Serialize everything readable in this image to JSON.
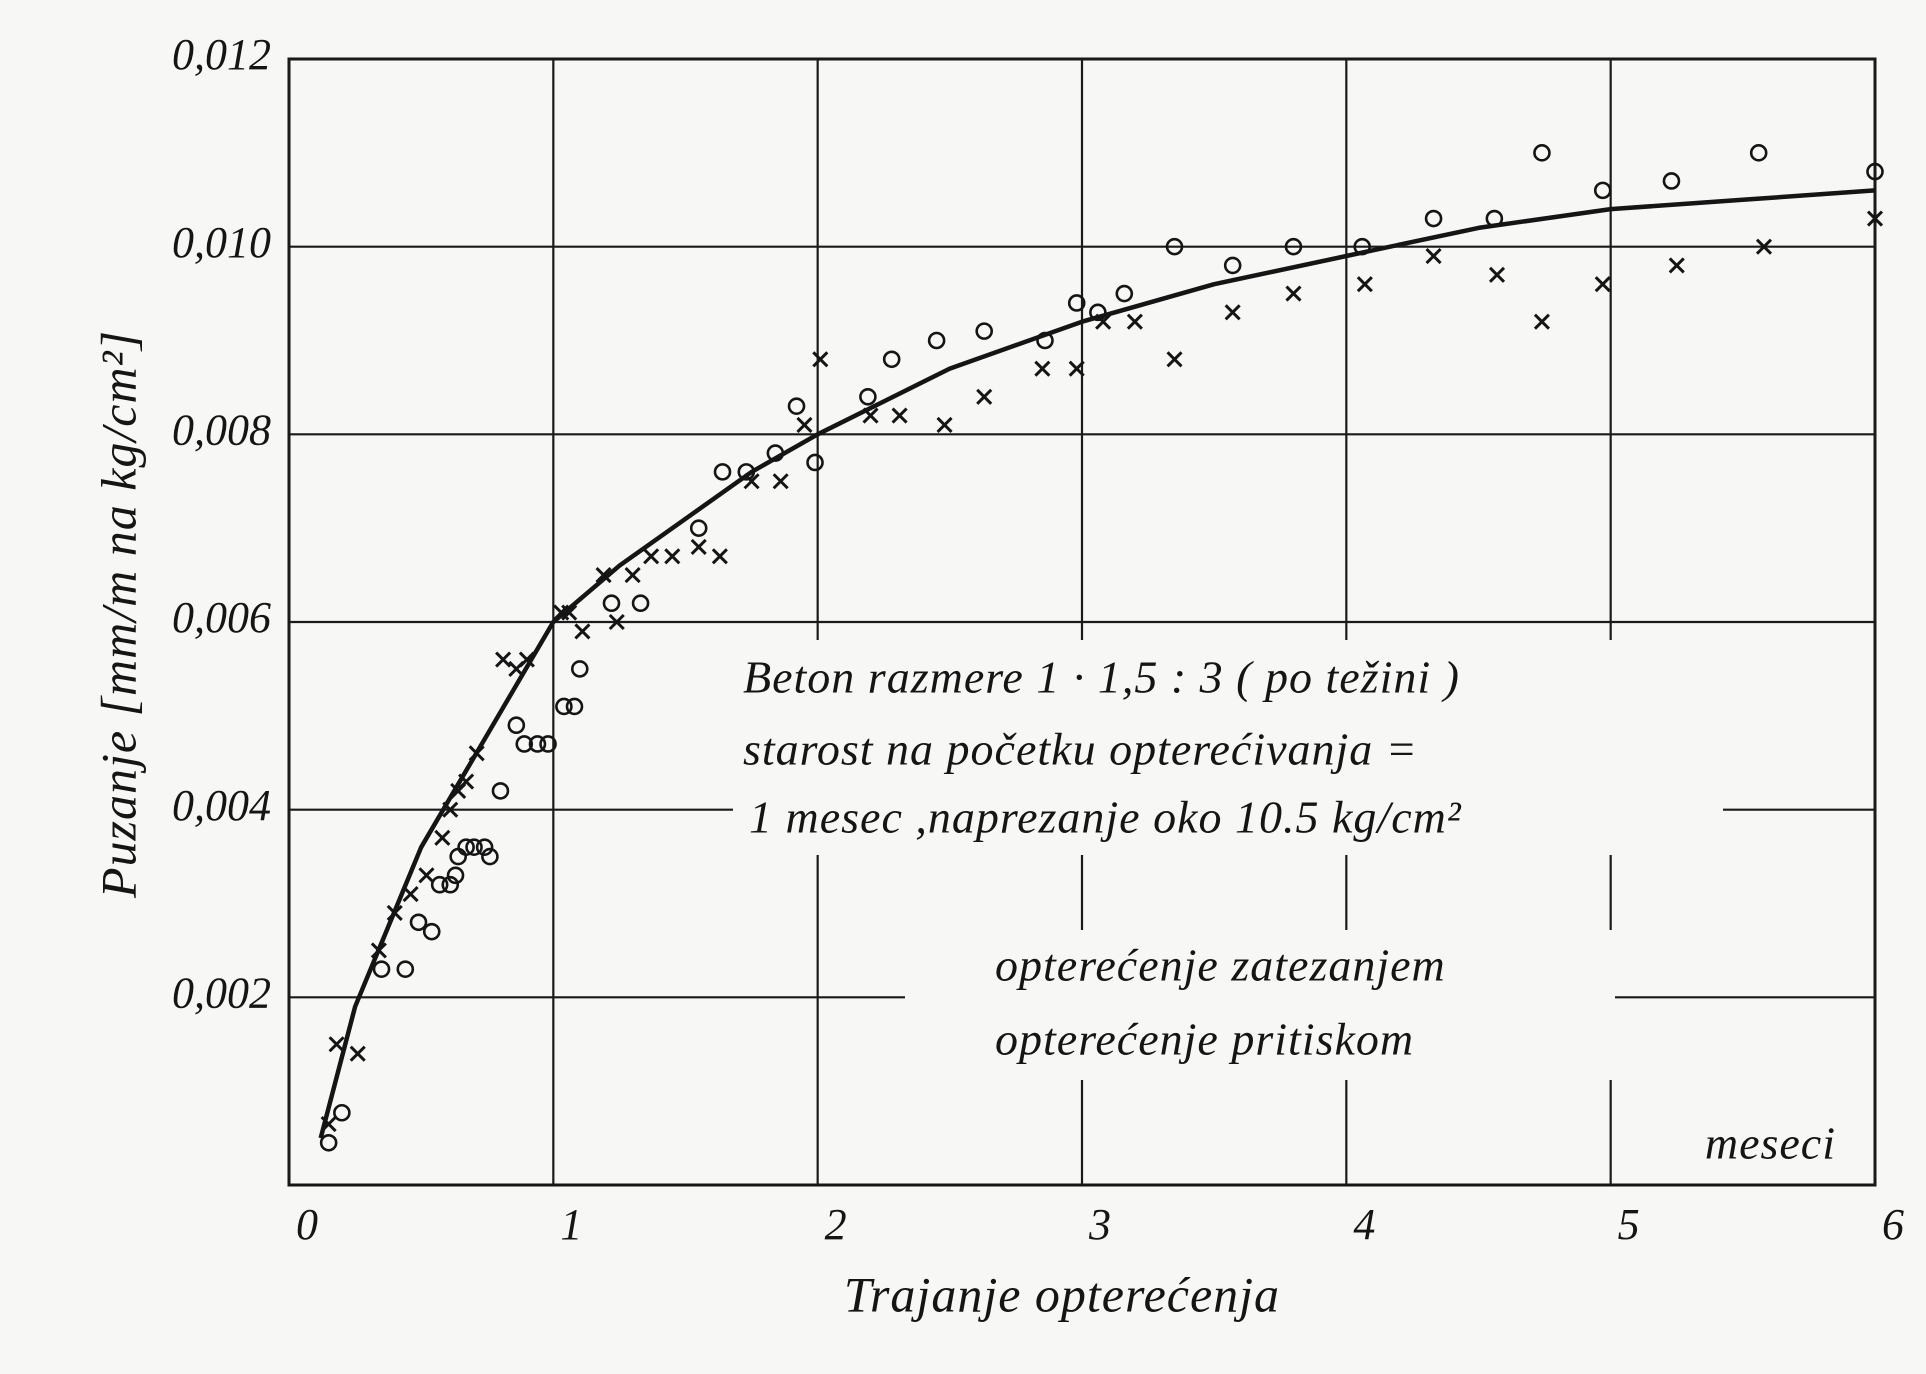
{
  "chart_data": {
    "type": "scatter",
    "x_label": "Trajanje opterećenja",
    "y_label": "Puzanje [mm/m na kg/cm²]",
    "unit_label": "meseci",
    "annotation": [
      "Beton razmere  1 · 1,5 : 3 ( po težini )",
      "starost na početku opterećivanja =",
      "1 mesec ,naprezanje oko 10.5 kg/cm²"
    ],
    "xlim": [
      0,
      6
    ],
    "ylim": [
      0,
      0.012
    ],
    "xticks": [
      0,
      1,
      2,
      3,
      4,
      5,
      6
    ],
    "yticks": [
      {
        "value": 0.002,
        "label": "0,002"
      },
      {
        "value": 0.004,
        "label": "0,004"
      },
      {
        "value": 0.006,
        "label": "0,006"
      },
      {
        "value": 0.008,
        "label": "0,008"
      },
      {
        "value": 0.01,
        "label": "0,010"
      },
      {
        "value": 0.012,
        "label": "0,012"
      }
    ],
    "grid": true,
    "series": [
      {
        "name": "opterećenje zatezanjem",
        "marker": "circle",
        "color": "#151515",
        "x": [
          0.15,
          0.2,
          0.35,
          0.44,
          0.49,
          0.54,
          0.57,
          0.61,
          0.63,
          0.64,
          0.67,
          0.7,
          0.74,
          0.76,
          0.8,
          0.86,
          0.89,
          0.94,
          0.98,
          1.04,
          1.08,
          1.1,
          1.22,
          1.33,
          1.55,
          1.64,
          1.73,
          1.84,
          1.92,
          1.99,
          2.19,
          2.28,
          2.45,
          2.63,
          2.86,
          2.98,
          3.06,
          3.16,
          3.35,
          3.57,
          3.8,
          4.06,
          4.33,
          4.56,
          4.74,
          4.97,
          5.23,
          5.56,
          6.0
        ],
        "values": [
          0.00045,
          0.00077,
          0.0023,
          0.0023,
          0.0028,
          0.0027,
          0.0032,
          0.0032,
          0.0033,
          0.0035,
          0.0036,
          0.0036,
          0.0036,
          0.0035,
          0.0042,
          0.0049,
          0.0047,
          0.0047,
          0.0047,
          0.0051,
          0.0051,
          0.0055,
          0.0062,
          0.0062,
          0.007,
          0.0076,
          0.0076,
          0.0078,
          0.0083,
          0.0077,
          0.0084,
          0.0088,
          0.009,
          0.0091,
          0.009,
          0.0094,
          0.0093,
          0.0095,
          0.01,
          0.0098,
          0.01,
          0.01,
          0.0103,
          0.0103,
          0.011,
          0.0106,
          0.0107,
          0.011,
          0.0108
        ]
      },
      {
        "name": "opterećenje pritiskom",
        "marker": "cross",
        "color": "#151515",
        "x": [
          0.15,
          0.18,
          0.26,
          0.34,
          0.4,
          0.46,
          0.52,
          0.58,
          0.61,
          0.64,
          0.67,
          0.71,
          0.81,
          0.86,
          0.9,
          1.03,
          1.06,
          1.11,
          1.19,
          1.24,
          1.3,
          1.37,
          1.45,
          1.55,
          1.63,
          1.75,
          1.86,
          1.95,
          2.01,
          2.2,
          2.31,
          2.48,
          2.63,
          2.85,
          2.98,
          3.08,
          3.2,
          3.35,
          3.57,
          3.8,
          4.07,
          4.33,
          4.57,
          4.74,
          4.97,
          5.25,
          5.58,
          6.0
        ],
        "values": [
          0.00065,
          0.0015,
          0.0014,
          0.0025,
          0.0029,
          0.0031,
          0.0033,
          0.0037,
          0.004,
          0.0042,
          0.0043,
          0.0046,
          0.0056,
          0.0055,
          0.0056,
          0.0061,
          0.0061,
          0.0059,
          0.0065,
          0.006,
          0.0065,
          0.0067,
          0.0067,
          0.0068,
          0.0067,
          0.0075,
          0.0075,
          0.0081,
          0.0088,
          0.0082,
          0.0082,
          0.0081,
          0.0084,
          0.0087,
          0.0087,
          0.0092,
          0.0092,
          0.0088,
          0.0093,
          0.0095,
          0.0096,
          0.0099,
          0.0097,
          0.0092,
          0.0096,
          0.0098,
          0.01,
          0.0103
        ]
      }
    ],
    "curve": {
      "color": "#151515",
      "x": [
        0.12,
        0.25,
        0.5,
        0.75,
        1,
        1.25,
        1.5,
        1.75,
        2,
        2.5,
        3,
        3.5,
        4,
        4.5,
        5,
        5.5,
        6
      ],
      "values": [
        0.0005,
        0.0019,
        0.0036,
        0.0048,
        0.006,
        0.0066,
        0.0071,
        0.0076,
        0.008,
        0.0087,
        0.0092,
        0.0096,
        0.0099,
        0.0102,
        0.0104,
        0.0105,
        0.0106
      ]
    }
  }
}
